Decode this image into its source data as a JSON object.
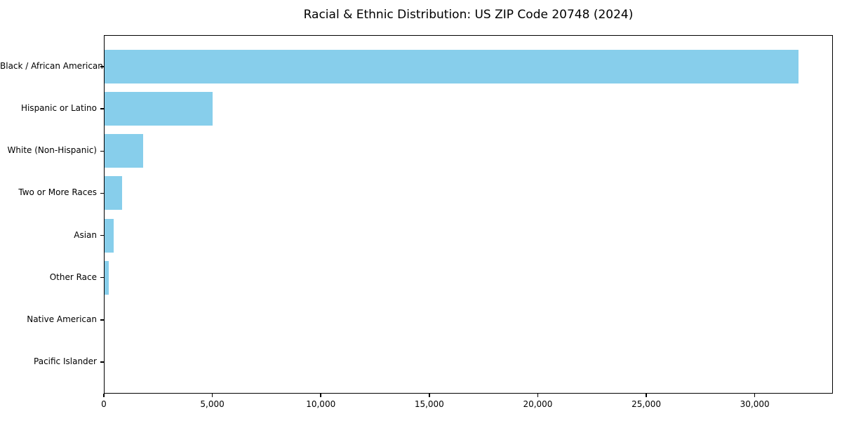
{
  "chart_data": {
    "type": "bar",
    "orientation": "horizontal",
    "title": "Racial & Ethnic Distribution: US ZIP Code 20748 (2024)",
    "xlabel": "",
    "ylabel": "",
    "categories": [
      "Black / African American",
      "Hispanic or Latino",
      "White (Non-Hispanic)",
      "Two or More Races",
      "Asian",
      "Other Race",
      "Native American",
      "Pacific Islander"
    ],
    "values": [
      32000,
      5000,
      1800,
      850,
      460,
      240,
      40,
      15
    ],
    "xlim": [
      0,
      33600
    ],
    "xtick_values": [
      0,
      5000,
      10000,
      15000,
      20000,
      25000,
      30000
    ],
    "xtick_labels": [
      "0",
      "5,000",
      "10,000",
      "15,000",
      "20,000",
      "25,000",
      "30,000"
    ],
    "bar_color": "#87CEEB",
    "frame_color": "#000000",
    "text_color": "#000000",
    "background_color": "#ffffff",
    "grid": "off",
    "legend": "none"
  }
}
